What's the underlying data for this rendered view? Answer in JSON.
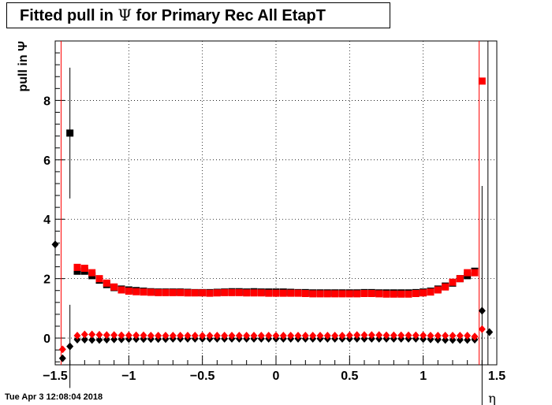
{
  "title": {
    "prefix": "Fitted pull in",
    "symbol": "Ψ",
    "suffix": "for Primary Rec All EtapT"
  },
  "timestamp": "Tue Apr  3 12:08:04 2018",
  "colors": {
    "black_series": "#000000",
    "red_series": "#ff0000",
    "grid": "#000000"
  },
  "chart_data": {
    "type": "scatter",
    "title": "Fitted pull in Ψ for Primary Rec All EtapT",
    "xlabel": "η",
    "ylabel": "pull in Ψ",
    "xlim": [
      -1.5,
      1.5
    ],
    "ylim": [
      -0.9,
      10.0
    ],
    "xticks": [
      -1.5,
      -1,
      -0.5,
      0,
      0.5,
      1,
      1.5
    ],
    "xtick_labels": [
      "−1.5",
      "−1",
      "−0.5",
      "0",
      "0.5",
      "1",
      "1.5"
    ],
    "yticks": [
      0,
      2,
      4,
      6,
      8
    ],
    "ytick_labels": [
      "0",
      "2",
      "4",
      "6",
      "8"
    ],
    "grid": true,
    "series": [
      {
        "marker": "square",
        "color": "#000000",
        "x": [
          -1.45,
          -1.4,
          -1.35,
          -1.3,
          -1.25,
          -1.2,
          -1.15,
          -1.1,
          -1.05,
          -1,
          -0.95,
          -0.9,
          -0.85,
          -0.8,
          -0.75,
          -0.7,
          -0.65,
          -0.6,
          -0.55,
          -0.5,
          -0.45,
          -0.4,
          -0.35,
          -0.3,
          -0.25,
          -0.2,
          -0.15,
          -0.1,
          -0.05,
          0,
          0.05,
          0.1,
          0.15,
          0.2,
          0.25,
          0.3,
          0.35,
          0.4,
          0.45,
          0.5,
          0.55,
          0.6,
          0.65,
          0.7,
          0.75,
          0.8,
          0.85,
          0.9,
          0.95,
          1,
          1.05,
          1.1,
          1.15,
          1.2,
          1.25,
          1.3,
          1.35
        ],
        "y": [
          null,
          6.9,
          2.25,
          2.25,
          2.1,
          1.95,
          1.8,
          1.7,
          1.65,
          1.62,
          1.6,
          1.58,
          1.56,
          1.55,
          1.55,
          1.55,
          1.55,
          1.54,
          1.53,
          1.53,
          1.53,
          1.54,
          1.55,
          1.56,
          1.56,
          1.55,
          1.56,
          1.55,
          1.55,
          1.55,
          1.55,
          1.54,
          1.53,
          1.53,
          1.52,
          1.52,
          1.52,
          1.52,
          1.52,
          1.52,
          1.52,
          1.53,
          1.53,
          1.52,
          1.52,
          1.52,
          1.52,
          1.52,
          1.53,
          1.55,
          1.58,
          1.65,
          1.75,
          1.85,
          2.0,
          2.1,
          2.25
        ],
        "err": [
          null,
          2.2,
          0,
          0,
          0,
          0,
          0,
          0,
          0,
          0,
          0,
          0,
          0,
          0,
          0,
          0,
          0,
          0,
          0,
          0,
          0,
          0,
          0,
          0,
          0,
          0,
          0,
          0,
          0,
          0,
          0,
          0,
          0,
          0,
          0,
          0,
          0,
          0,
          0,
          0,
          0,
          0,
          0,
          0,
          0,
          0,
          0,
          0,
          0,
          0,
          0,
          0,
          0,
          0,
          0,
          0,
          0
        ]
      },
      {
        "marker": "square",
        "color": "#ff0000",
        "x": [
          -1.45,
          -1.4,
          -1.35,
          -1.3,
          -1.25,
          -1.2,
          -1.15,
          -1.1,
          -1.05,
          -1,
          -0.95,
          -0.9,
          -0.85,
          -0.8,
          -0.75,
          -0.7,
          -0.65,
          -0.6,
          -0.55,
          -0.5,
          -0.45,
          -0.4,
          -0.35,
          -0.3,
          -0.25,
          -0.2,
          -0.15,
          -0.1,
          -0.05,
          0,
          0.05,
          0.1,
          0.15,
          0.2,
          0.25,
          0.3,
          0.35,
          0.4,
          0.45,
          0.5,
          0.55,
          0.6,
          0.65,
          0.7,
          0.75,
          0.8,
          0.85,
          0.9,
          0.95,
          1,
          1.05,
          1.1,
          1.15,
          1.2,
          1.25,
          1.3,
          1.35,
          1.4
        ],
        "y": [
          null,
          null,
          2.38,
          2.35,
          2.2,
          2.0,
          1.85,
          1.72,
          1.62,
          1.58,
          1.56,
          1.55,
          1.54,
          1.53,
          1.53,
          1.53,
          1.53,
          1.52,
          1.52,
          1.52,
          1.51,
          1.52,
          1.53,
          1.53,
          1.53,
          1.52,
          1.52,
          1.52,
          1.51,
          1.51,
          1.51,
          1.51,
          1.51,
          1.5,
          1.49,
          1.49,
          1.49,
          1.49,
          1.49,
          1.49,
          1.49,
          1.5,
          1.5,
          1.49,
          1.48,
          1.48,
          1.48,
          1.48,
          1.5,
          1.52,
          1.55,
          1.62,
          1.72,
          1.88,
          2.0,
          2.2,
          2.2,
          8.65
        ],
        "err": []
      },
      {
        "marker": "diamond",
        "color": "#000000",
        "x": [
          -1.5,
          -1.45,
          -1.4,
          -1.35,
          -1.3,
          -1.25,
          -1.2,
          -1.15,
          -1.1,
          -1.05,
          -1,
          -0.95,
          -0.9,
          -0.85,
          -0.8,
          -0.75,
          -0.7,
          -0.65,
          -0.6,
          -0.55,
          -0.5,
          -0.45,
          -0.4,
          -0.35,
          -0.3,
          -0.25,
          -0.2,
          -0.15,
          -0.1,
          -0.05,
          0,
          0.05,
          0.1,
          0.15,
          0.2,
          0.25,
          0.3,
          0.35,
          0.4,
          0.45,
          0.5,
          0.55,
          0.6,
          0.65,
          0.7,
          0.75,
          0.8,
          0.85,
          0.9,
          0.95,
          1,
          1.05,
          1.1,
          1.15,
          1.2,
          1.25,
          1.3,
          1.35,
          1.4,
          1.45
        ],
        "y": [
          3.15,
          -0.68,
          -0.28,
          -0.05,
          -0.05,
          -0.06,
          -0.06,
          -0.05,
          -0.04,
          -0.04,
          -0.03,
          -0.03,
          -0.03,
          -0.03,
          -0.03,
          -0.03,
          -0.02,
          -0.02,
          -0.02,
          -0.02,
          -0.02,
          -0.02,
          -0.02,
          -0.02,
          -0.02,
          -0.02,
          -0.02,
          -0.02,
          -0.02,
          -0.02,
          -0.02,
          -0.02,
          -0.02,
          -0.02,
          -0.02,
          -0.02,
          -0.02,
          -0.02,
          -0.02,
          -0.02,
          -0.02,
          -0.02,
          -0.02,
          -0.02,
          -0.02,
          -0.02,
          -0.02,
          -0.02,
          -0.02,
          -0.02,
          -0.03,
          -0.04,
          -0.05,
          -0.06,
          -0.06,
          -0.06,
          -0.06,
          -0.05,
          0.92,
          0.2
        ],
        "err": [
          0,
          0,
          1.4,
          0,
          0,
          0,
          0,
          0,
          0,
          0,
          0,
          0,
          0,
          0,
          0,
          0,
          0,
          0,
          0,
          0,
          0,
          0,
          0,
          0,
          0,
          0,
          0,
          0,
          0,
          0,
          0,
          0,
          0,
          0,
          0,
          0,
          0,
          0,
          0,
          0,
          0,
          0,
          0,
          0,
          0,
          0,
          0,
          0,
          0,
          0,
          0,
          0,
          0,
          0,
          0,
          0,
          0,
          0,
          4.2,
          0
        ]
      },
      {
        "marker": "diamond",
        "color": "#ff0000",
        "x": [
          -1.45,
          -1.4,
          -1.35,
          -1.3,
          -1.25,
          -1.2,
          -1.15,
          -1.1,
          -1.05,
          -1,
          -0.95,
          -0.9,
          -0.85,
          -0.8,
          -0.75,
          -0.7,
          -0.65,
          -0.6,
          -0.55,
          -0.5,
          -0.45,
          -0.4,
          -0.35,
          -0.3,
          -0.25,
          -0.2,
          -0.15,
          -0.1,
          -0.05,
          0,
          0.05,
          0.1,
          0.15,
          0.2,
          0.25,
          0.3,
          0.35,
          0.4,
          0.45,
          0.5,
          0.55,
          0.6,
          0.65,
          0.7,
          0.75,
          0.8,
          0.85,
          0.9,
          0.95,
          1,
          1.05,
          1.1,
          1.15,
          1.2,
          1.25,
          1.3,
          1.35,
          1.4
        ],
        "y": [
          -0.38,
          null,
          0.08,
          0.12,
          0.12,
          0.11,
          0.1,
          0.1,
          0.09,
          0.09,
          0.09,
          0.09,
          0.08,
          0.08,
          0.08,
          0.08,
          0.08,
          0.08,
          0.08,
          0.08,
          0.08,
          0.08,
          0.08,
          0.08,
          0.08,
          0.08,
          0.08,
          0.08,
          0.08,
          0.08,
          0.08,
          0.08,
          0.08,
          0.08,
          0.08,
          0.08,
          0.08,
          0.08,
          0.08,
          0.09,
          0.1,
          0.1,
          0.1,
          0.1,
          0.09,
          0.09,
          0.09,
          0.09,
          0.09,
          0.09,
          0.08,
          0.08,
          0.08,
          0.08,
          0.08,
          0.08,
          0.05,
          0.3
        ],
        "err": []
      }
    ],
    "vertical_lines": [
      {
        "x": -1.46,
        "from": -0.9,
        "to": 10.0,
        "color": "#ff0000"
      },
      {
        "x": 1.38,
        "from": -0.9,
        "to": 10.0,
        "color": "#ff0000"
      },
      {
        "x": 1.44,
        "from": -0.9,
        "to": 10.0,
        "color": "#000000"
      }
    ]
  }
}
